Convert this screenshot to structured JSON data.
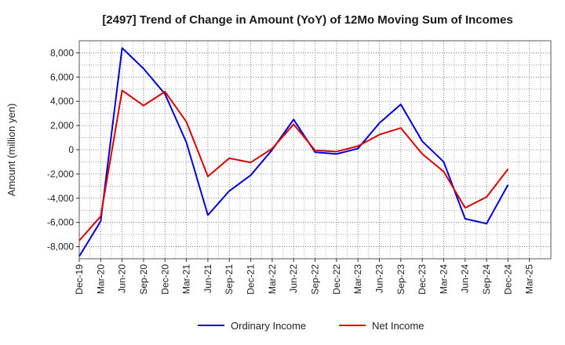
{
  "chart_data": {
    "type": "line",
    "title": "[2497]  Trend of Change in Amount (YoY) of 12Mo Moving Sum of Incomes",
    "xlabel": "",
    "ylabel": "Amount (million yen)",
    "categories": [
      "Dec-19",
      "Mar-20",
      "Jun-20",
      "Sep-20",
      "Dec-20",
      "Mar-21",
      "Jun-21",
      "Sep-21",
      "Dec-21",
      "Mar-22",
      "Jun-22",
      "Sep-22",
      "Dec-22",
      "Mar-23",
      "Jun-23",
      "Sep-23",
      "Dec-23",
      "Mar-24",
      "Jun-24",
      "Sep-24",
      "Dec-24",
      "Mar-25"
    ],
    "ylim": [
      -9000,
      9000
    ],
    "yticks": [
      -8000,
      -6000,
      -4000,
      -2000,
      0,
      2000,
      4000,
      6000,
      8000
    ],
    "ytick_labels": [
      "-8,000",
      "-6,000",
      "-4,000",
      "-2,000",
      "0",
      "2,000",
      "4,000",
      "6,000",
      "8,000"
    ],
    "grid": true,
    "legend_position": "bottom",
    "series": [
      {
        "name": "Ordinary Income",
        "color": "#0000dd",
        "values": [
          -8800,
          -5900,
          8400,
          6700,
          4600,
          600,
          -5400,
          -3400,
          -2100,
          0,
          2500,
          -200,
          -350,
          100,
          2200,
          3750,
          700,
          -1000,
          -5700,
          -6100,
          -2900,
          null
        ]
      },
      {
        "name": "Net Income",
        "color": "#dd0000",
        "values": [
          -7500,
          -5500,
          4900,
          3650,
          4800,
          2300,
          -2200,
          -700,
          -1050,
          100,
          2100,
          -50,
          -150,
          300,
          1250,
          1800,
          -350,
          -1800,
          -4800,
          -3900,
          -1600,
          null
        ]
      }
    ]
  }
}
